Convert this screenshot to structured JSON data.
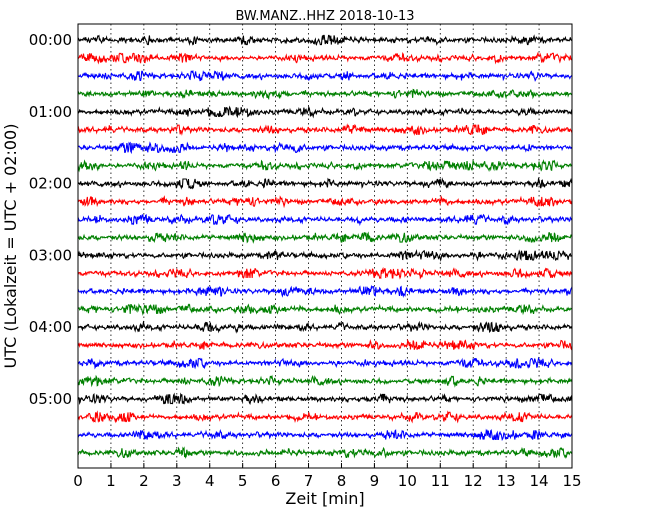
{
  "chart_data": {
    "type": "line",
    "title": "BW.MANZ..HHZ 2018-10-13",
    "xlabel": "Zeit  [min]",
    "ylabel": "UTC (Lokalzeit = UTC + 02:00)",
    "xlim": [
      0,
      15
    ],
    "x_ticks": [
      "0",
      "1",
      "2",
      "3",
      "4",
      "5",
      "6",
      "7",
      "8",
      "9",
      "10",
      "11",
      "12",
      "13",
      "14",
      "15"
    ],
    "y_ticks": [
      "00:00",
      "01:00",
      "02:00",
      "03:00",
      "04:00",
      "05:00"
    ],
    "grid": "vertical dotted lines at each minute",
    "trace_interval_minutes": 15,
    "trace_count": 24,
    "trace_colors": [
      "#000000",
      "#ff0000",
      "#0000ff",
      "#008000"
    ],
    "note_on_data": "Each row is a 15-minute seismogram segment; amplitudes are normalized noise-like traces."
  }
}
